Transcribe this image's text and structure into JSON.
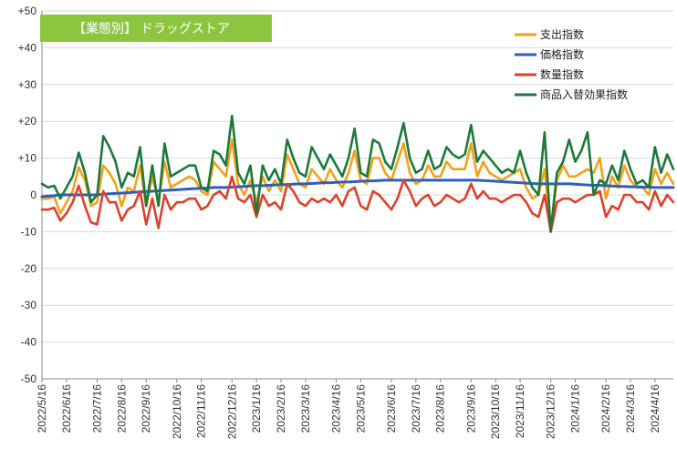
{
  "chart_data": {
    "type": "line",
    "title": "【業態別】 ドラッグストア",
    "colors": {
      "title_bg": "#8cc63f",
      "title_text": "#ffffff",
      "grid": "#d9d9d9",
      "axis": "#8c8c8c"
    },
    "ylim": [
      -50,
      50
    ],
    "yticks": [
      50,
      40,
      30,
      20,
      10,
      0,
      -10,
      -20,
      -30,
      -40,
      -50
    ],
    "ytick_labels": [
      "+50",
      "+40",
      "+30",
      "+20",
      "+10",
      "0",
      "-10",
      "-20",
      "-30",
      "-40",
      "-50"
    ],
    "grid": true,
    "legend_position": "top-right",
    "x_tick_labels": [
      "2022/5/16",
      "2022/6/16",
      "2022/7/16",
      "2022/8/16",
      "2022/9/16",
      "2022/10/16",
      "2022/11/16",
      "2022/12/16",
      "2023/1/16",
      "2023/2/16",
      "2023/3/16",
      "2023/4/16",
      "2023/5/16",
      "2023/6/16",
      "2023/7/16",
      "2023/8/16",
      "2023/9/16",
      "2023/10/16",
      "2023/11/16",
      "2023/12/16",
      "2024/1/16",
      "2024/2/16",
      "2024/3/16",
      "2024/4/16"
    ],
    "x_tick_index": [
      0,
      4,
      9,
      13,
      17,
      22,
      26,
      31,
      35,
      39,
      43,
      48,
      52,
      57,
      61,
      65,
      70,
      74,
      78,
      83,
      87,
      92,
      96,
      100
    ],
    "series": [
      {
        "name": "支出指数",
        "color": "#f5a01a",
        "values": [
          -1,
          -1,
          -0.5,
          -5,
          -2,
          1,
          7.5,
          4,
          -3,
          -2,
          8,
          6,
          3,
          -3,
          2,
          1,
          8,
          -3,
          5,
          -2,
          9,
          2,
          3,
          4,
          5,
          4,
          1,
          0,
          9,
          7,
          5,
          15,
          3,
          0,
          4,
          -2,
          5,
          1,
          4,
          1,
          11,
          7,
          3,
          2,
          7,
          5,
          3,
          7,
          4,
          2,
          6,
          12,
          4,
          3,
          10,
          10,
          6,
          4,
          9,
          14,
          6,
          3,
          4,
          8,
          5,
          5,
          9,
          7,
          7,
          7,
          14,
          5,
          9,
          6,
          5,
          4,
          5,
          6,
          7,
          2,
          -1,
          0,
          7,
          -10,
          4,
          8,
          5,
          5,
          6,
          7,
          6,
          10,
          -1,
          5,
          2,
          8,
          4,
          2,
          2,
          0,
          7,
          3,
          6,
          3
        ]
      },
      {
        "name": "価格指数",
        "color": "#2d5fc0",
        "values": [
          -0.5,
          -0.3,
          -0.2,
          0,
          0,
          0,
          0,
          0,
          0,
          0,
          0.2,
          0.3,
          0.4,
          0.5,
          0.6,
          0.7,
          0.8,
          0.9,
          1,
          1.1,
          1.2,
          1.3,
          1.4,
          1.5,
          1.6,
          1.7,
          1.8,
          1.9,
          2,
          2,
          2,
          2.1,
          2.2,
          2.3,
          2.4,
          2.5,
          2.5,
          2.6,
          2.7,
          2.8,
          2.8,
          2.9,
          3,
          3,
          3.1,
          3.2,
          3.3,
          3.3,
          3.4,
          3.5,
          3.5,
          3.6,
          3.7,
          3.8,
          3.8,
          3.9,
          4,
          4,
          4,
          4,
          4,
          4,
          4,
          4,
          4,
          4,
          4,
          4,
          4,
          4,
          4,
          4,
          3.9,
          3.8,
          3.7,
          3.6,
          3.5,
          3.4,
          3.3,
          3.2,
          3.1,
          3,
          3,
          3,
          3,
          3,
          3,
          2.9,
          2.8,
          2.7,
          2.6,
          2.6,
          2.5,
          2.4,
          2.3,
          2.3,
          2.2,
          2.2,
          2.1,
          2.1,
          2,
          2,
          2,
          2
        ]
      },
      {
        "name": "数量指数",
        "color": "#e0402a",
        "values": [
          -4,
          -4,
          -3.5,
          -7,
          -5,
          -2,
          2.5,
          -3,
          -7.5,
          -8,
          1,
          -2,
          -2,
          -7,
          -4,
          -3,
          1,
          -8,
          -1,
          -9,
          0,
          -4,
          -2,
          -2,
          -1,
          -1,
          -4,
          -3,
          0,
          1,
          -1,
          5,
          -1,
          -2,
          0,
          -6,
          0,
          -3,
          -2,
          -4,
          3,
          1,
          -2,
          -3,
          -1,
          -2,
          -1,
          -2,
          0,
          -3,
          1,
          2,
          -3,
          -4,
          1,
          0,
          -2,
          -4,
          -1,
          4,
          1,
          -3,
          -1,
          0,
          -3,
          -2,
          0,
          -1,
          -2,
          -1,
          3,
          -1,
          1,
          -1,
          -1,
          -2,
          -1,
          0,
          0,
          -2,
          -5,
          -6,
          0,
          -10,
          -2,
          -1,
          -1,
          -2,
          -1,
          0,
          0,
          1,
          -6,
          -3,
          -4,
          0,
          0,
          -2,
          -2,
          -4,
          1,
          -3,
          0,
          -2
        ]
      },
      {
        "name": "商品入替効果指数",
        "color": "#1b7a3a",
        "values": [
          3,
          2,
          2.5,
          -1,
          2,
          5,
          11.5,
          6,
          -2,
          0,
          16,
          13,
          9,
          2,
          6,
          5,
          13,
          -3,
          8,
          -3,
          14,
          5,
          6,
          7,
          8,
          8,
          2,
          1,
          12,
          11,
          8,
          21.5,
          6,
          3,
          8,
          -5,
          8,
          4,
          7,
          3,
          15,
          10,
          6,
          5,
          13,
          10,
          7,
          11,
          8,
          5,
          10,
          18,
          6,
          5,
          15,
          14,
          9,
          7,
          13,
          19.5,
          10,
          6,
          7,
          12,
          7,
          8,
          13,
          11,
          10,
          11,
          19,
          9,
          12,
          10,
          8,
          6,
          7,
          6,
          12,
          6,
          2,
          0,
          17,
          -10,
          6,
          9,
          15,
          9,
          12,
          17,
          0,
          4,
          3,
          8,
          4,
          12,
          7,
          3,
          4,
          2,
          13,
          6,
          11,
          7
        ]
      }
    ]
  }
}
